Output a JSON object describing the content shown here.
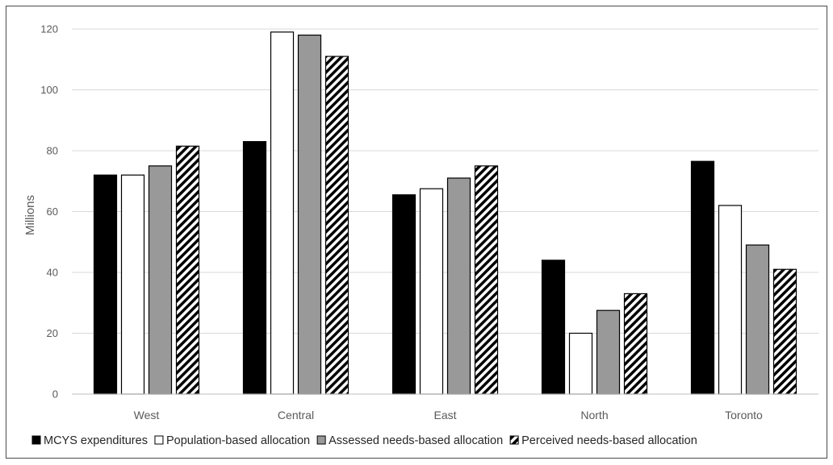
{
  "chart_data": {
    "type": "bar",
    "title": "",
    "xlabel": "",
    "ylabel": "Millions",
    "ylim": [
      0,
      120
    ],
    "yticks": [
      0,
      20,
      40,
      60,
      80,
      100,
      120
    ],
    "grid": true,
    "legend_position": "bottom",
    "categories": [
      "West",
      "Central",
      "East",
      "North",
      "Toronto"
    ],
    "series": [
      {
        "name": "MCYS expenditures",
        "fill": "solid-black",
        "values": [
          72,
          83,
          65.5,
          44,
          76.5
        ]
      },
      {
        "name": "Population-based allocation",
        "fill": "white",
        "values": [
          72,
          119,
          67.5,
          20,
          62
        ]
      },
      {
        "name": "Assessed needs-based allocation",
        "fill": "gray",
        "values": [
          75,
          118,
          71,
          27.5,
          49
        ]
      },
      {
        "name": "Perceived needs-based allocation",
        "fill": "diagonal-hatch",
        "values": [
          81.5,
          111,
          75,
          33,
          41
        ]
      }
    ]
  }
}
